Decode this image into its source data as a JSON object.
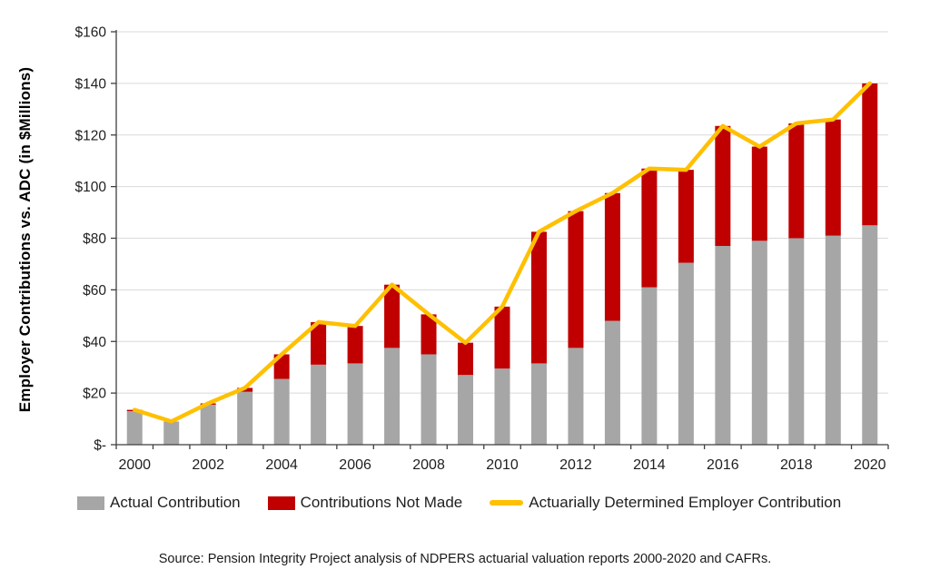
{
  "page": {
    "background": "#FFFFFF"
  },
  "chart_data": {
    "type": "bar",
    "subtype": "stacked-bar-with-line-combo",
    "title": "",
    "ylabel": "Employer Contributions vs. ADC (in $Millions)",
    "xlabel": "",
    "ylim": [
      0,
      160
    ],
    "ytick_step": 20,
    "ytick_labels": [
      "$-",
      "$20",
      "$40",
      "$60",
      "$80",
      "$100",
      "$120",
      "$140",
      "$160"
    ],
    "x": [
      2000,
      2001,
      2002,
      2003,
      2004,
      2005,
      2006,
      2007,
      2008,
      2009,
      2010,
      2011,
      2012,
      2013,
      2014,
      2015,
      2016,
      2017,
      2018,
      2019,
      2020
    ],
    "xtick_label_interval": 2,
    "grid": "horizontal",
    "legend_position": "bottom",
    "axis_color": "#3f3f3f",
    "gridline_color": "#DADADA",
    "tick_label_color": "#1f1f1f",
    "series": [
      {
        "name": "Actual Contribution",
        "type": "bar",
        "stack": "contributions",
        "color": "#A6A6A6",
        "values": [
          13,
          9,
          15.5,
          20.5,
          25.5,
          31,
          31.5,
          37.5,
          35,
          27,
          29.5,
          31.5,
          37.5,
          48,
          61,
          70.5,
          77,
          79,
          80,
          81,
          85
        ]
      },
      {
        "name": "Contributions Not Made",
        "type": "bar",
        "stack": "contributions",
        "color": "#C00000",
        "values": [
          0.5,
          0,
          0.5,
          1.5,
          9.5,
          16.5,
          14.5,
          24.5,
          15.5,
          12.5,
          24,
          51,
          53,
          49.5,
          46,
          36,
          46.5,
          36.5,
          44.5,
          45,
          55
        ]
      },
      {
        "name": "Actuarially Determined Employer Contribution",
        "type": "line",
        "color": "#FFC000",
        "stroke_width": 4.5,
        "values": [
          13.5,
          9,
          16,
          22,
          35,
          47.5,
          46,
          62,
          50.5,
          39.5,
          53.5,
          82.5,
          90.5,
          97.5,
          107,
          106.5,
          123.5,
          115.5,
          124.5,
          126,
          140
        ]
      }
    ]
  },
  "footer": {
    "source": "Source: Pension Integrity Project analysis of NDPERS actuarial valuation reports 2000-2020 and CAFRs."
  }
}
